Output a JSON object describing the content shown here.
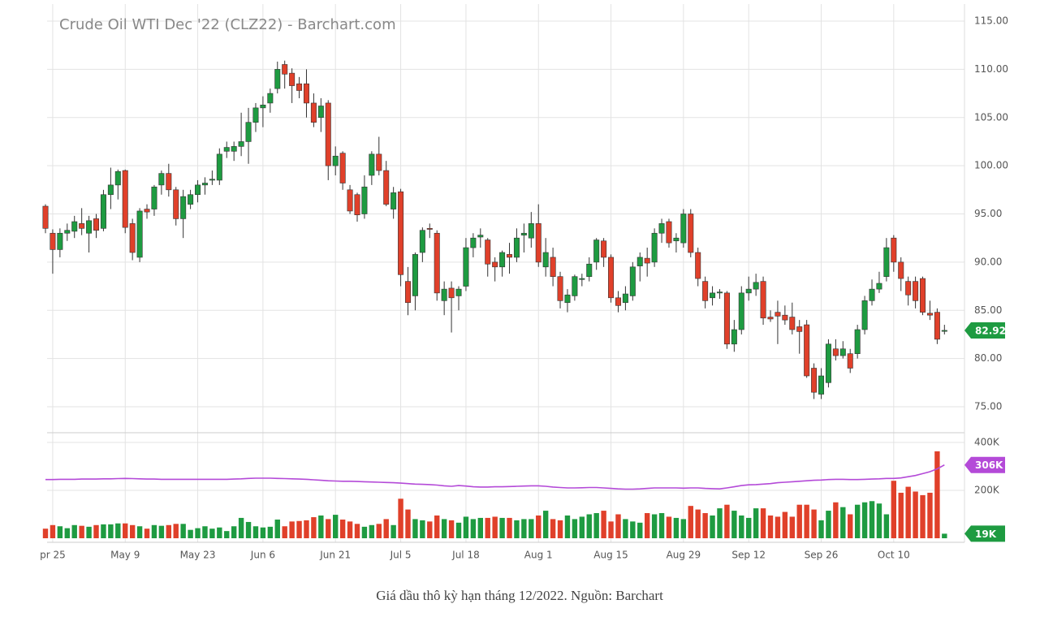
{
  "chart_data": {
    "type": "candlestick",
    "title": "Crude Oil WTI Dec '22 (CLZ22) - Barchart.com",
    "caption": "Giá dầu thô kỳ hạn tháng 12/2022. Nguồn: Barchart",
    "up_color": "#1e9b41",
    "down_color": "#e0402a",
    "ma_color": "#b44ad8",
    "grid": true,
    "ylim": [
      73,
      116.5
    ],
    "yticks": [
      {
        "value": 75,
        "label": "75.00"
      },
      {
        "value": 80,
        "label": "80.00"
      },
      {
        "value": 85,
        "label": "85.00"
      },
      {
        "value": 90,
        "label": "90.00"
      },
      {
        "value": 95,
        "label": "95.00"
      },
      {
        "value": 100,
        "label": "100.00"
      },
      {
        "value": 105,
        "label": "105.00"
      },
      {
        "value": 110,
        "label": "110.00"
      },
      {
        "value": 115,
        "label": "115.00"
      }
    ],
    "y2lim": [
      0,
      400
    ],
    "y2ticks": [
      {
        "value": 200,
        "label": "200K"
      },
      {
        "value": 400,
        "label": "400K"
      }
    ],
    "xticks": [
      {
        "value": 1,
        "label": "pr 25"
      },
      {
        "value": 11,
        "label": "May 9"
      },
      {
        "value": 21,
        "label": "May 23"
      },
      {
        "value": 30,
        "label": "Jun 6"
      },
      {
        "value": 40,
        "label": "Jun 21"
      },
      {
        "value": 49,
        "label": "Jul 5"
      },
      {
        "value": 58,
        "label": "Jul 18"
      },
      {
        "value": 68,
        "label": "Aug 1"
      },
      {
        "value": 78,
        "label": "Aug 15"
      },
      {
        "value": 88,
        "label": "Aug 29"
      },
      {
        "value": 97,
        "label": "Sep 12"
      },
      {
        "value": 107,
        "label": "Sep 26"
      },
      {
        "value": 117,
        "label": "Oct 10"
      }
    ],
    "candles": [
      [
        95.8,
        96,
        93,
        93.5
      ],
      [
        93,
        93.4,
        88.8,
        91.3
      ],
      [
        91.3,
        93.5,
        90.5,
        93
      ],
      [
        93,
        94,
        92.2,
        93.3
      ],
      [
        93.2,
        94.8,
        92.5,
        94.2
      ],
      [
        94,
        95.6,
        92.8,
        93.5
      ],
      [
        93,
        94.8,
        91,
        94.3
      ],
      [
        94.5,
        95,
        92.5,
        93.3
      ],
      [
        93.5,
        97.5,
        93.2,
        97
      ],
      [
        97,
        99.8,
        95.5,
        98
      ],
      [
        98,
        99.6,
        96.5,
        99.4
      ],
      [
        99.5,
        99.6,
        93,
        93.6
      ],
      [
        94,
        94.5,
        90.2,
        91
      ],
      [
        90.5,
        95.6,
        90,
        95.3
      ],
      [
        95.5,
        96,
        94.5,
        95.2
      ],
      [
        95.5,
        98,
        94.8,
        97.8
      ],
      [
        98,
        99.5,
        97,
        99.2
      ],
      [
        99.2,
        100.2,
        96.8,
        97.5
      ],
      [
        97.5,
        97.8,
        93.8,
        94.5
      ],
      [
        94.5,
        97.5,
        92.5,
        96.8
      ],
      [
        96,
        97.5,
        95.5,
        97
      ],
      [
        97,
        98.5,
        96.2,
        98
      ],
      [
        98,
        98.8,
        97,
        98.2
      ],
      [
        98.5,
        99.5,
        98,
        98.6
      ],
      [
        98.5,
        101.8,
        98,
        101.2
      ],
      [
        101.5,
        102.5,
        100.8,
        101.9
      ],
      [
        101.5,
        102.5,
        100.5,
        102
      ],
      [
        102,
        105.5,
        101,
        102.5
      ],
      [
        102.5,
        106,
        100.2,
        104.5
      ],
      [
        104.5,
        106.5,
        103.5,
        106
      ],
      [
        106,
        107.2,
        104,
        106.3
      ],
      [
        106.5,
        108,
        105.5,
        107.5
      ],
      [
        108,
        110.8,
        107.5,
        110
      ],
      [
        110.5,
        110.9,
        108,
        109.5
      ],
      [
        109.6,
        110.1,
        106.5,
        108.3
      ],
      [
        108.5,
        109.2,
        107,
        107.8
      ],
      [
        108.5,
        110,
        105,
        106.5
      ],
      [
        106.5,
        107.5,
        104,
        104.5
      ],
      [
        105,
        107,
        103.5,
        106.2
      ],
      [
        106.5,
        106.8,
        98.5,
        100
      ],
      [
        100,
        102,
        99,
        101
      ],
      [
        101.3,
        101.5,
        97.5,
        98.2
      ],
      [
        97.5,
        98,
        95,
        95.3
      ],
      [
        97,
        97.2,
        94.2,
        94.9
      ],
      [
        95,
        99,
        94.5,
        97.8
      ],
      [
        99,
        101.5,
        98,
        101.2
      ],
      [
        101.2,
        103,
        99,
        99.5
      ],
      [
        99.5,
        100.5,
        95.8,
        96
      ],
      [
        95.5,
        97.8,
        94.5,
        97.2
      ],
      [
        97.3,
        97.6,
        87.5,
        88.7
      ],
      [
        88,
        89.5,
        84.5,
        85.8
      ],
      [
        86.5,
        91,
        85,
        90.8
      ],
      [
        91,
        93.6,
        90,
        93.3
      ],
      [
        93.5,
        94,
        92.5,
        93.4
      ],
      [
        93,
        93.3,
        86,
        86.8
      ],
      [
        86,
        88,
        84.5,
        87.2
      ],
      [
        87.3,
        88,
        82.7,
        86.3
      ],
      [
        86.5,
        87.5,
        85,
        87.2
      ],
      [
        87.5,
        92.5,
        87,
        91.5
      ],
      [
        91.5,
        93,
        90.5,
        92.5
      ],
      [
        92.6,
        93.5,
        91.5,
        92.8
      ],
      [
        92.3,
        92.5,
        88.5,
        89.8
      ],
      [
        90,
        90.5,
        88,
        89.5
      ],
      [
        89.5,
        91.2,
        88.5,
        91
      ],
      [
        90.8,
        92,
        88.8,
        90.5
      ],
      [
        90.5,
        93.5,
        90,
        92.5
      ],
      [
        92.8,
        94,
        91,
        93
      ],
      [
        92.5,
        95.2,
        91.5,
        94
      ],
      [
        94,
        96,
        89.5,
        90
      ],
      [
        89.5,
        92.5,
        88.5,
        91
      ],
      [
        90.5,
        91.5,
        87.5,
        88.5
      ],
      [
        88.5,
        89,
        85.2,
        86
      ],
      [
        85.8,
        87.2,
        84.8,
        86.6
      ],
      [
        86.5,
        88.7,
        86,
        88.5
      ],
      [
        88.2,
        88.8,
        87.5,
        88.3
      ],
      [
        88.5,
        90.5,
        88,
        89.8
      ],
      [
        90,
        92.5,
        89.2,
        92.3
      ],
      [
        92.2,
        92.5,
        89.5,
        90.5
      ],
      [
        90.5,
        90.8,
        85.8,
        86.3
      ],
      [
        86.3,
        87,
        84.8,
        85.5
      ],
      [
        85.8,
        87.5,
        85,
        86.7
      ],
      [
        86.5,
        90,
        86,
        89.5
      ],
      [
        89.6,
        91,
        88,
        90.5
      ],
      [
        90.4,
        91.5,
        88.5,
        89.9
      ],
      [
        90,
        93.5,
        89.5,
        93
      ],
      [
        93,
        94.5,
        92,
        94
      ],
      [
        94.2,
        94.5,
        91.5,
        92
      ],
      [
        92.2,
        93,
        91,
        92.5
      ],
      [
        92,
        95.5,
        91.5,
        95
      ],
      [
        95,
        95.5,
        90.5,
        91
      ],
      [
        91,
        91.5,
        87.5,
        88.3
      ],
      [
        88,
        88.5,
        85.2,
        86
      ],
      [
        86.3,
        87.5,
        85.5,
        86.8
      ],
      [
        86.8,
        87.2,
        86.2,
        86.9
      ],
      [
        86.8,
        87,
        81,
        81.5
      ],
      [
        81.5,
        84,
        80.7,
        83
      ],
      [
        83,
        87.5,
        82.5,
        86.8
      ],
      [
        86.8,
        88.5,
        86,
        87.2
      ],
      [
        87.2,
        88.8,
        86.5,
        87.9
      ],
      [
        88,
        88.5,
        83.5,
        84.2
      ],
      [
        84.3,
        85,
        83.8,
        84.1
      ],
      [
        84.8,
        86,
        81.5,
        84.4
      ],
      [
        84.5,
        85.5,
        83.5,
        84
      ],
      [
        84.3,
        85.8,
        82.5,
        83
      ],
      [
        83.3,
        84,
        80.5,
        82.8
      ],
      [
        83.5,
        84,
        78,
        78.2
      ],
      [
        79,
        79.5,
        75.8,
        76.5
      ],
      [
        76.3,
        79,
        75.8,
        78.2
      ],
      [
        77.5,
        82,
        77,
        81.5
      ],
      [
        81,
        82,
        79.8,
        80.3
      ],
      [
        80.3,
        81.8,
        80,
        81
      ],
      [
        80.5,
        81,
        78.5,
        79
      ],
      [
        80.5,
        83.5,
        80,
        83
      ],
      [
        83,
        86.5,
        82.5,
        86
      ],
      [
        86,
        88.2,
        85.5,
        87.2
      ],
      [
        87.2,
        89,
        86.8,
        87.8
      ],
      [
        88.5,
        92.5,
        88,
        91.5
      ],
      [
        92.5,
        92.8,
        89,
        90
      ],
      [
        90,
        90.5,
        87,
        88.3
      ],
      [
        88,
        88.5,
        85.5,
        86.6
      ],
      [
        88,
        88.5,
        85.2,
        86
      ],
      [
        88.3,
        88.5,
        84.5,
        84.8
      ],
      [
        84.7,
        86,
        84,
        84.5
      ],
      [
        84.8,
        85.2,
        81.5,
        82
      ],
      [
        82.9,
        83.5,
        82.5,
        82.92
      ]
    ],
    "volumes": [
      40,
      55,
      50,
      42,
      55,
      52,
      48,
      55,
      58,
      58,
      62,
      62,
      55,
      50,
      40,
      55,
      52,
      55,
      60,
      60,
      35,
      42,
      50,
      40,
      45,
      30,
      50,
      85,
      68,
      50,
      45,
      48,
      78,
      50,
      70,
      72,
      75,
      88,
      95,
      80,
      98,
      78,
      70,
      60,
      48,
      55,
      60,
      80,
      55,
      165,
      120,
      80,
      75,
      70,
      95,
      80,
      75,
      65,
      90,
      80,
      85,
      85,
      90,
      85,
      85,
      75,
      80,
      80,
      95,
      115,
      80,
      75,
      95,
      80,
      90,
      100,
      105,
      115,
      70,
      100,
      80,
      70,
      65,
      105,
      100,
      105,
      90,
      85,
      80,
      135,
      120,
      105,
      95,
      125,
      140,
      115,
      95,
      85,
      125,
      125,
      95,
      90,
      110,
      90,
      140,
      140,
      120,
      75,
      115,
      150,
      130,
      100,
      140,
      150,
      155,
      145,
      100,
      240,
      190,
      215,
      195,
      180,
      190,
      363,
      19
    ],
    "volume_ma": [
      245,
      245,
      246,
      246,
      246,
      247,
      247,
      247,
      248,
      248,
      249,
      250,
      249,
      248,
      247,
      247,
      246,
      246,
      246,
      246,
      246,
      246,
      246,
      246,
      246,
      246,
      247,
      248,
      250,
      251,
      251,
      251,
      250,
      249,
      248,
      247,
      246,
      244,
      242,
      240,
      239,
      238,
      238,
      237,
      236,
      235,
      234,
      233,
      232,
      230,
      228,
      226,
      225,
      224,
      222,
      219,
      217,
      220,
      218,
      215,
      214,
      214,
      215,
      215,
      216,
      217,
      218,
      219,
      219,
      217,
      214,
      212,
      210,
      210,
      211,
      212,
      212,
      210,
      208,
      206,
      205,
      205,
      206,
      208,
      210,
      210,
      210,
      210,
      209,
      210,
      210,
      208,
      207,
      206,
      210,
      215,
      220,
      223,
      224,
      226,
      228,
      232,
      234,
      236,
      238,
      240,
      242,
      243,
      245,
      246,
      246,
      245,
      245,
      246,
      247,
      248,
      250,
      250,
      252,
      257,
      262,
      270,
      278,
      290,
      306
    ],
    "last_volume_label": "19K",
    "last_ma_label": "306K"
  }
}
